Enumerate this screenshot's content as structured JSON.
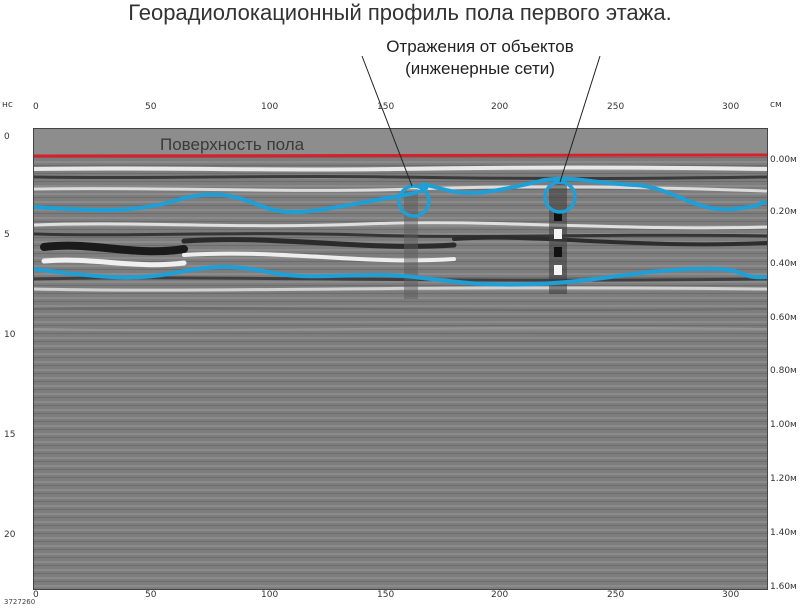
{
  "title": "Георадиолокационный профиль пола первого этажа.",
  "callout": {
    "line1": "Отражения от объектов",
    "line2": "(инженерные сети)"
  },
  "floor_surface_label": "Поверхность пола",
  "axes": {
    "top_unit": "см",
    "left_unit": "нс",
    "x_ticks": [
      "0",
      "50",
      "100",
      "150",
      "200",
      "250",
      "300"
    ],
    "y_ticks": [
      "0",
      "5",
      "10",
      "15",
      "20"
    ],
    "depth_ticks": [
      "0.00м",
      "0.20м",
      "0.40м",
      "0.60м",
      "0.80м",
      "1.00м",
      "1.20м",
      "1.40м",
      "1.60м"
    ]
  },
  "image_code": "3727260",
  "colors": {
    "surface_line": "#d8202a",
    "trace_line": "#1e9fd6"
  }
}
